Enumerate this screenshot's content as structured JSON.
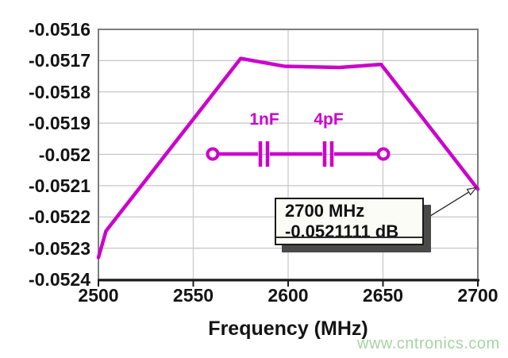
{
  "colors": {
    "curve": "#cc00cc",
    "grid": "#c6c6c6",
    "axis_frame": "#7d7d7d",
    "axis_bottom": "#1b1b1b",
    "text": "#141414",
    "annotation_border": "#1a1a1a",
    "annotation_fill": "#fcfcf7",
    "annotation_shadow": "#4a4a4a",
    "leader": "#333333",
    "watermark": "#a5d5a0",
    "background": "#ffffff"
  },
  "chart_data": {
    "type": "line",
    "title": "",
    "xlabel": "Frequency (MHz)",
    "ylabel": "",
    "xlim": [
      2500,
      2700
    ],
    "ylim": [
      -0.0524,
      -0.0516
    ],
    "grid": true,
    "legend": false,
    "x_ticks": [
      2500,
      2550,
      2600,
      2650,
      2700
    ],
    "x_tick_labels": [
      "2500",
      "2550",
      "2600",
      "2650",
      "2700"
    ],
    "y_ticks": [
      -0.0516,
      -0.0517,
      -0.0518,
      -0.0519,
      -0.052,
      -0.0521,
      -0.0522,
      -0.0523,
      -0.0524
    ],
    "y_tick_labels": [
      "-0.0516",
      "-0.0517",
      "-0.0518",
      "-0.0519",
      "-0.052",
      "-0.0521",
      "-0.0522",
      "-0.0523",
      "-0.0524"
    ],
    "series": [
      {
        "x": [
          2500,
          2504,
          2575,
          2598,
          2627,
          2649,
          2700
        ],
        "y": [
          -0.05233,
          -0.052245,
          -0.051693,
          -0.051718,
          -0.051722,
          -0.051712,
          -0.0521111
        ]
      }
    ],
    "annotation": {
      "line1": "2700 MHz",
      "line2": "-0.0521111 dB",
      "target": {
        "x": 2700,
        "y": -0.0521111
      }
    },
    "inset_circuit": {
      "labels": [
        "1nF",
        "4pF"
      ],
      "description": "two capacitors in series between two port terminals"
    }
  },
  "watermark": {
    "text": "www.cntronics.com"
  }
}
